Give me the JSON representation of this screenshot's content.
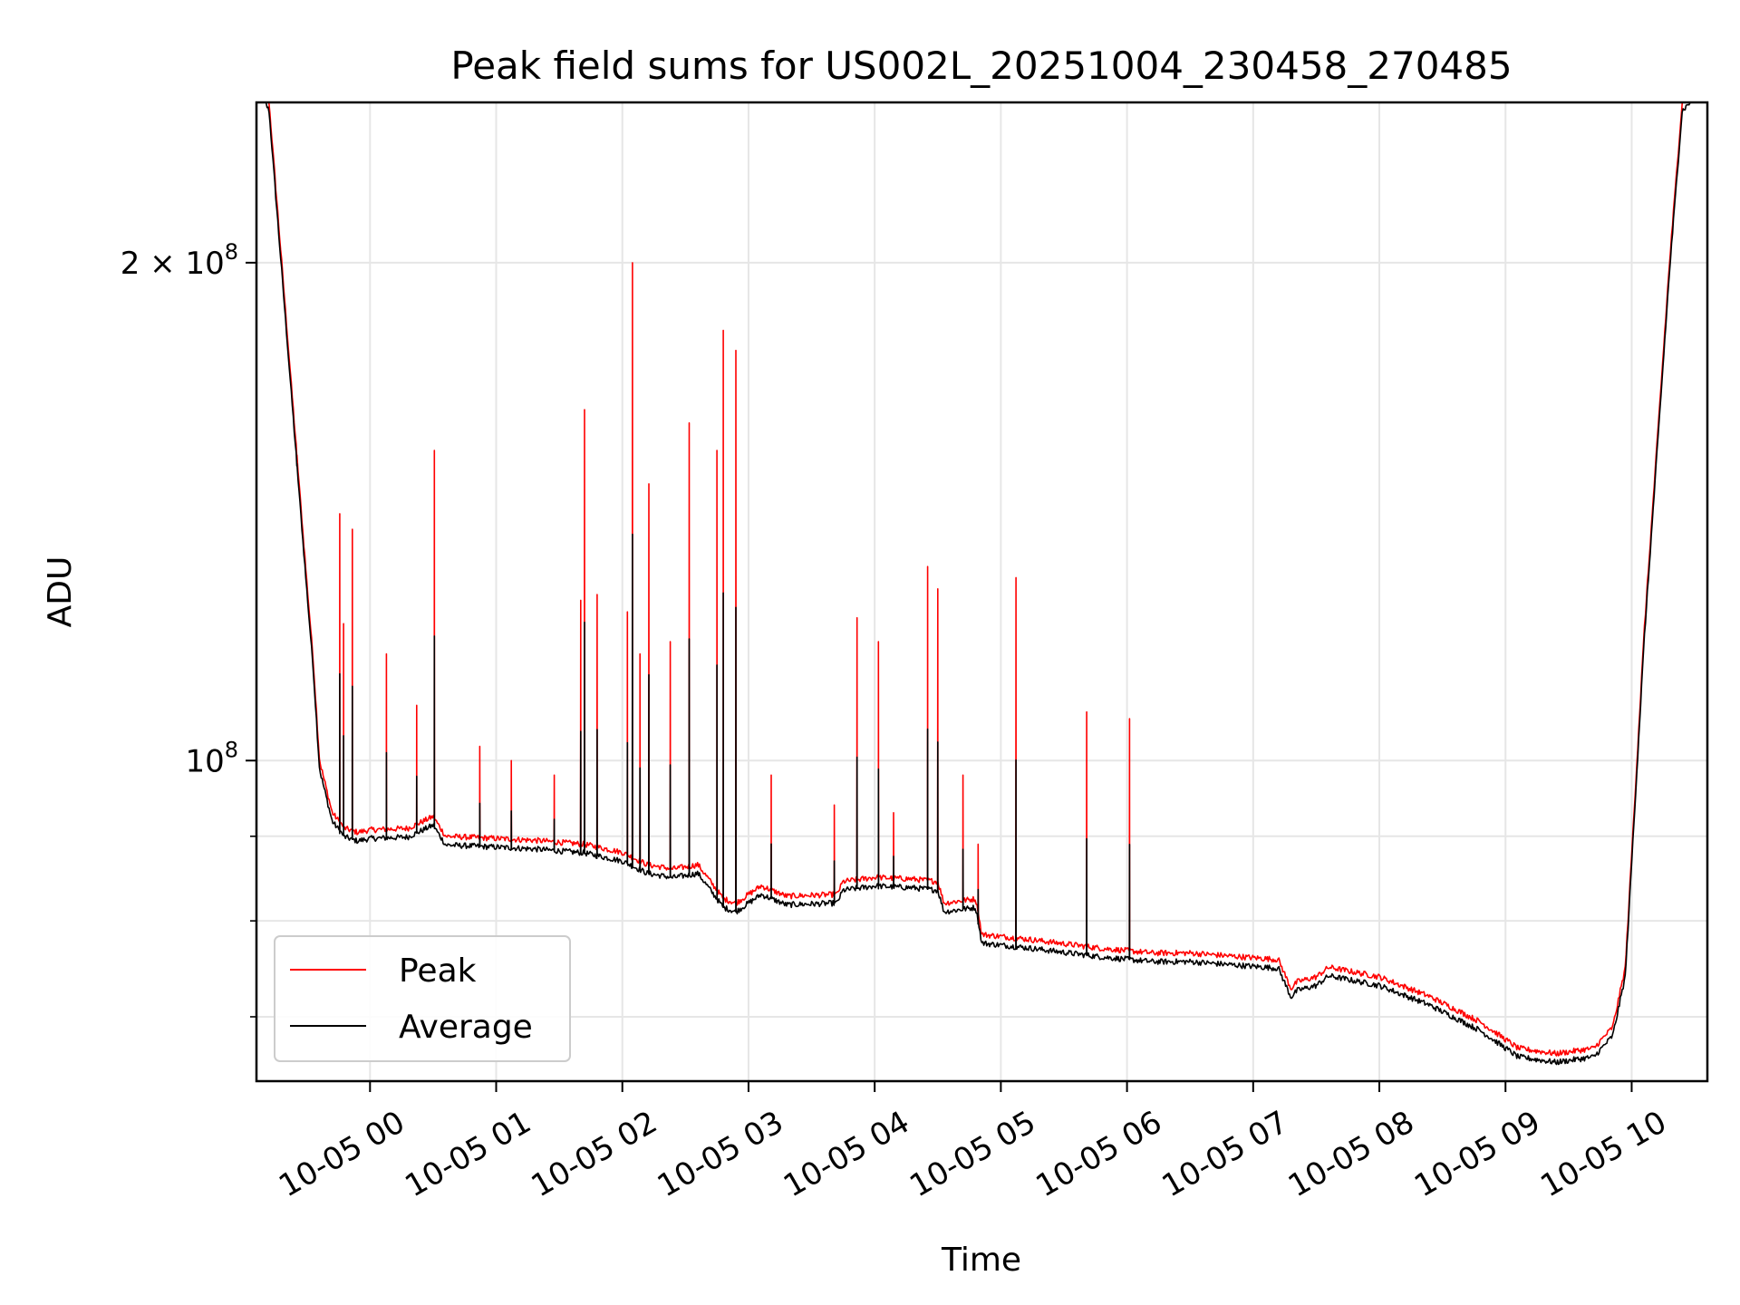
{
  "chart_data": {
    "type": "line",
    "title": "Peak field sums for US002L_20251004_230458_270485",
    "xlabel": "Time",
    "ylabel": "ADU",
    "yscale": "log",
    "ylim": [
      64000000,
      250000000
    ],
    "xlim_hours": [
      -0.9,
      10.6
    ],
    "grid": true,
    "legend_location": "lower-left",
    "x_ticks": [
      {
        "hour": 0,
        "label": "10-05 00"
      },
      {
        "hour": 1,
        "label": "10-05 01"
      },
      {
        "hour": 2,
        "label": "10-05 02"
      },
      {
        "hour": 3,
        "label": "10-05 03"
      },
      {
        "hour": 4,
        "label": "10-05 04"
      },
      {
        "hour": 5,
        "label": "10-05 05"
      },
      {
        "hour": 6,
        "label": "10-05 06"
      },
      {
        "hour": 7,
        "label": "10-05 07"
      },
      {
        "hour": 8,
        "label": "10-05 08"
      },
      {
        "hour": 9,
        "label": "10-05 09"
      },
      {
        "hour": 10,
        "label": "10-05 10"
      }
    ],
    "y_major_ticks": [
      {
        "value": 100000000,
        "base": "10",
        "exp": "8",
        "prefix": ""
      },
      {
        "value": 200000000,
        "base": "10",
        "exp": "8",
        "prefix": "2 × "
      }
    ],
    "y_minor_ticks": [
      70000000,
      80000000,
      90000000
    ],
    "series": [
      {
        "name": "Peak",
        "color": "#ff0000",
        "baseline": {
          "hours": [
            -0.9,
            -0.8,
            -0.7,
            -0.6,
            -0.5,
            -0.45,
            -0.4,
            -0.3,
            -0.2,
            -0.1,
            0.0,
            0.3,
            0.5,
            0.6,
            0.9,
            1.3,
            1.7,
            2.0,
            2.2,
            2.4,
            2.6,
            2.8,
            2.9,
            3.1,
            3.3,
            3.7,
            3.75,
            4.0,
            4.3,
            4.5,
            4.55,
            4.8,
            4.85,
            5.2,
            5.8,
            6.2,
            6.5,
            7.2,
            7.3,
            7.35,
            7.5,
            7.6,
            8.0,
            8.4,
            8.8,
            9.1,
            9.4,
            9.7,
            9.85,
            9.95,
            10.1,
            10.3,
            10.4,
            10.6
          ],
          "values": [
            260000000,
            250000000,
            200000000,
            160000000,
            128000000,
            115000000,
            100000000,
            93000000,
            91000000,
            90500000,
            90800000,
            91000000,
            92500000,
            90000000,
            89800000,
            89500000,
            89000000,
            88000000,
            86500000,
            86000000,
            86500000,
            82500000,
            82000000,
            84000000,
            82800000,
            83000000,
            84500000,
            85000000,
            84800000,
            84500000,
            82000000,
            82500000,
            78500000,
            78000000,
            77000000,
            76500000,
            76500000,
            75800000,
            72800000,
            73500000,
            74000000,
            75000000,
            74000000,
            72000000,
            69500000,
            67000000,
            66500000,
            67000000,
            69000000,
            75000000,
            120000000,
            200000000,
            250000000,
            260000000
          ]
        },
        "spikes": [
          {
            "hour": -0.58,
            "value": 152000000
          },
          {
            "hour": -0.24,
            "value": 141000000
          },
          {
            "hour": -0.21,
            "value": 121000000
          },
          {
            "hour": -0.14,
            "value": 138000000
          },
          {
            "hour": 0.13,
            "value": 116000000
          },
          {
            "hour": 0.37,
            "value": 108000000
          },
          {
            "hour": 0.51,
            "value": 154000000
          },
          {
            "hour": 0.87,
            "value": 102000000
          },
          {
            "hour": 1.12,
            "value": 100000000
          },
          {
            "hour": 1.46,
            "value": 98000000
          },
          {
            "hour": 1.67,
            "value": 125000000
          },
          {
            "hour": 1.7,
            "value": 163000000
          },
          {
            "hour": 1.8,
            "value": 126000000
          },
          {
            "hour": 2.04,
            "value": 123000000
          },
          {
            "hour": 2.08,
            "value": 200000000
          },
          {
            "hour": 2.14,
            "value": 116000000
          },
          {
            "hour": 2.21,
            "value": 147000000
          },
          {
            "hour": 2.38,
            "value": 118000000
          },
          {
            "hour": 2.53,
            "value": 160000000
          },
          {
            "hour": 2.75,
            "value": 154000000
          },
          {
            "hour": 2.8,
            "value": 182000000
          },
          {
            "hour": 2.9,
            "value": 177000000
          },
          {
            "hour": 3.18,
            "value": 98000000
          },
          {
            "hour": 3.68,
            "value": 94000000
          },
          {
            "hour": 3.86,
            "value": 122000000
          },
          {
            "hour": 4.03,
            "value": 118000000
          },
          {
            "hour": 4.15,
            "value": 93000000
          },
          {
            "hour": 4.42,
            "value": 131000000
          },
          {
            "hour": 4.5,
            "value": 127000000
          },
          {
            "hour": 4.7,
            "value": 98000000
          },
          {
            "hour": 4.82,
            "value": 89000000
          },
          {
            "hour": 5.12,
            "value": 129000000
          },
          {
            "hour": 5.68,
            "value": 107000000
          },
          {
            "hour": 6.02,
            "value": 106000000
          }
        ]
      },
      {
        "name": "Average",
        "color": "#000000",
        "offset_factor": 0.988
      }
    ]
  }
}
